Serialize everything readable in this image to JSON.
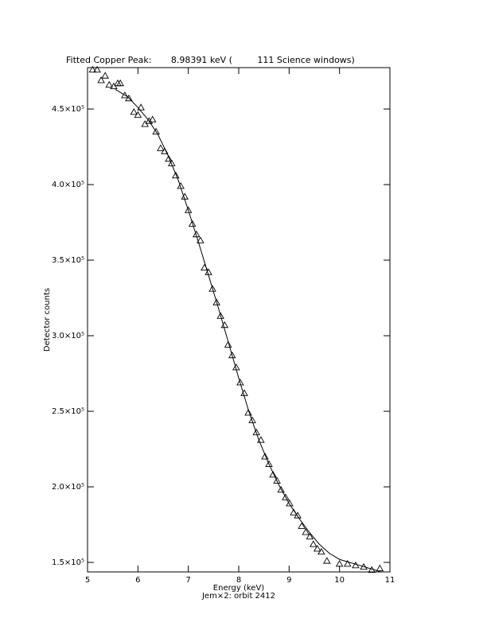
{
  "chart_data": {
    "type": "scatter",
    "title": "Fitted Copper Peak:       8.98391 keV (         111 Science windows)",
    "x_label": "Energy (keV)",
    "y_label": "Detector counts",
    "footer": "Jem×2: orbit 2412",
    "xlim": [
      5,
      11
    ],
    "xticks": [
      5,
      6,
      7,
      8,
      9,
      10,
      11
    ],
    "ylim": [
      143700,
      477400
    ],
    "yticks": [
      {
        "value": 150000,
        "label": "1.5×10⁵"
      },
      {
        "value": 200000,
        "label": "2.0×10⁵"
      },
      {
        "value": 250000,
        "label": "2.5×10⁵"
      },
      {
        "value": 300000,
        "label": "3.0×10⁵"
      },
      {
        "value": 350000,
        "label": "3.5×10⁵"
      },
      {
        "value": 400000,
        "label": "4.0×10⁵"
      },
      {
        "value": 450000,
        "label": "4.5×10⁵"
      }
    ],
    "color": "#000000",
    "series": [
      {
        "style": "triangles",
        "x": [
          5.1,
          5.19,
          5.27,
          5.35,
          5.43,
          5.52,
          5.6,
          5.65,
          5.74,
          5.82,
          5.92,
          6.0,
          6.06,
          6.14,
          6.22,
          6.29,
          6.36,
          6.45,
          6.53,
          6.61,
          6.67,
          6.75,
          6.85,
          6.93,
          7.0,
          7.08,
          7.16,
          7.24,
          7.32,
          7.4,
          7.48,
          7.56,
          7.64,
          7.72,
          7.79,
          7.87,
          7.95,
          8.03,
          8.11,
          8.19,
          8.27,
          8.35,
          8.44,
          8.52,
          8.6,
          8.68,
          8.76,
          8.84,
          8.93,
          9.01,
          9.09,
          9.17,
          9.25,
          9.33,
          9.41,
          9.48,
          9.56,
          9.64,
          9.75,
          10.0,
          10.16,
          10.32,
          10.48,
          10.64,
          10.8
        ],
        "values": [
          476000,
          476000,
          469000,
          472000,
          466000,
          465000,
          467000,
          467000,
          459000,
          457000,
          448000,
          446000,
          451000,
          440000,
          442000,
          443000,
          435000,
          424000,
          422000,
          417000,
          414000,
          406000,
          399000,
          392000,
          383000,
          374000,
          367000,
          363000,
          345000,
          342000,
          331000,
          322000,
          313000,
          307000,
          294000,
          287000,
          279000,
          269000,
          262000,
          249000,
          244000,
          236000,
          231000,
          220000,
          215000,
          208000,
          204000,
          198000,
          193000,
          189000,
          183000,
          181000,
          174000,
          170000,
          167000,
          162000,
          159000,
          157000,
          151000,
          149000,
          149000,
          148000,
          147000,
          145000,
          146000
        ]
      },
      {
        "style": "line",
        "x": [
          5.55,
          5.8,
          6.0,
          6.2,
          6.4,
          6.6,
          6.8,
          7.0,
          7.2,
          7.4,
          7.6,
          7.8,
          8.0,
          8.2,
          8.4,
          8.6,
          8.8,
          9.0,
          9.2,
          9.4,
          9.6,
          9.8,
          10.0,
          10.2,
          10.4,
          10.6,
          10.8
        ],
        "values": [
          463000,
          458000,
          451000,
          443000,
          433000,
          419000,
          403000,
          383000,
          362000,
          340000,
          318000,
          295000,
          272000,
          250000,
          231000,
          215000,
          201000,
          189000,
          179000,
          170000,
          162000,
          156000,
          152000,
          150000,
          148000,
          146000,
          144000
        ]
      }
    ]
  }
}
